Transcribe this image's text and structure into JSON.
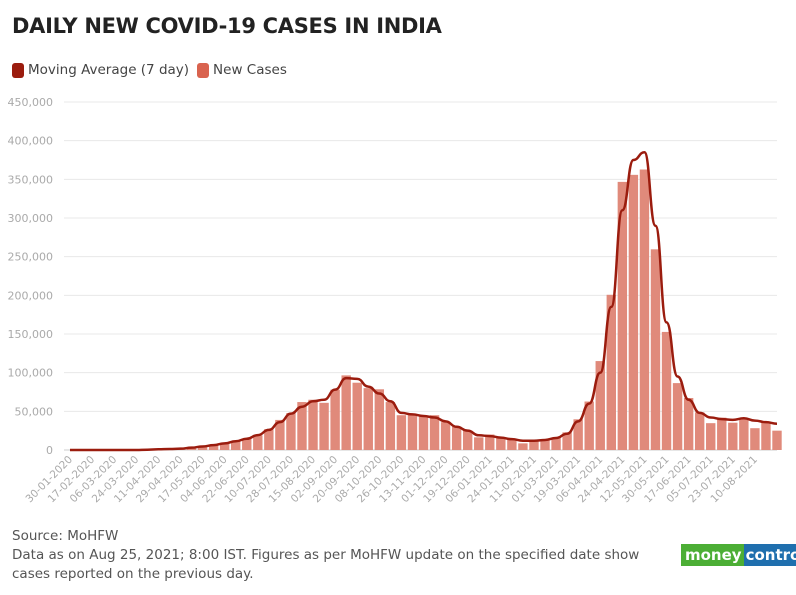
{
  "title": "DAILY NEW COVID-19 CASES IN INDIA",
  "legend": [
    {
      "label": "Moving Average (7 day)",
      "color": "#9b1c0e"
    },
    {
      "label": "New Cases",
      "color": "#d9634f"
    }
  ],
  "footer": {
    "source": "Source: MoHFW",
    "note": "Data as on Aug 25, 2021; 8:00 IST. Figures as per MoHFW update on the specified date show cases reported on the previous day."
  },
  "logo": {
    "part1": "money",
    "part2": "control"
  },
  "chart_data": {
    "type": "bar",
    "title": "DAILY NEW COVID-19 CASES IN INDIA",
    "xlabel": "",
    "ylabel": "",
    "ylim": [
      0,
      450000
    ],
    "yticks": [
      "0",
      "50,000",
      "100,000",
      "150,000",
      "200,000",
      "250,000",
      "300,000",
      "350,000",
      "400,000",
      "450,000"
    ],
    "grid": true,
    "legend_placement": "top-left",
    "xticks": [
      "30-01-2020",
      "17-02-2020",
      "06-03-2020",
      "24-03-2020",
      "11-04-2020",
      "29-04-2020",
      "17-05-2020",
      "04-06-2020",
      "22-06-2020",
      "10-07-2020",
      "28-07-2020",
      "15-08-2020",
      "02-09-2020",
      "20-09-2020",
      "08-10-2020",
      "26-10-2020",
      "13-11-2020",
      "01-12-2020",
      "19-12-2020",
      "06-01-2021",
      "24-01-2021",
      "11-02-2021",
      "01-03-2021",
      "19-03-2021",
      "06-04-2021",
      "24-04-2021",
      "12-05-2021",
      "30-05-2021",
      "17-06-2021",
      "05-07-2021",
      "23-07-2021",
      "10-08-2021"
    ],
    "dates": [
      "30-01-2020",
      "08-02-2020",
      "17-02-2020",
      "26-02-2020",
      "06-03-2020",
      "15-03-2020",
      "24-03-2020",
      "02-04-2020",
      "11-04-2020",
      "20-04-2020",
      "29-04-2020",
      "08-05-2020",
      "17-05-2020",
      "26-05-2020",
      "04-06-2020",
      "13-06-2020",
      "22-06-2020",
      "01-07-2020",
      "10-07-2020",
      "19-07-2020",
      "28-07-2020",
      "06-08-2020",
      "15-08-2020",
      "24-08-2020",
      "02-09-2020",
      "11-09-2020",
      "20-09-2020",
      "29-09-2020",
      "08-10-2020",
      "17-10-2020",
      "26-10-2020",
      "04-11-2020",
      "13-11-2020",
      "22-11-2020",
      "01-12-2020",
      "10-12-2020",
      "19-12-2020",
      "28-12-2020",
      "06-01-2021",
      "15-01-2021",
      "24-01-2021",
      "02-02-2021",
      "11-02-2021",
      "20-02-2021",
      "01-03-2021",
      "10-03-2021",
      "19-03-2021",
      "28-03-2021",
      "06-04-2021",
      "15-04-2021",
      "24-04-2021",
      "03-05-2021",
      "12-05-2021",
      "21-05-2021",
      "30-05-2021",
      "08-06-2021",
      "17-06-2021",
      "26-06-2021",
      "05-07-2021",
      "14-07-2021",
      "23-07-2021",
      "01-08-2021",
      "10-08-2021",
      "19-08-2021",
      "24-08-2021"
    ],
    "series": [
      {
        "name": "New Cases",
        "type": "bar",
        "values": [
          0,
          0,
          0,
          0,
          10,
          20,
          100,
          500,
          1000,
          1500,
          1800,
          3300,
          5000,
          6500,
          9300,
          11500,
          14800,
          19000,
          27000,
          38900,
          47700,
          62000,
          65000,
          61000,
          78000,
          96500,
          87000,
          80000,
          78500,
          62000,
          45000,
          46000,
          44000,
          45000,
          36000,
          30000,
          25000,
          16400,
          20000,
          15500,
          14000,
          8600,
          12900,
          13900,
          15500,
          22800,
          39700,
          62700,
          115000,
          200700,
          346700,
          355800,
          362700,
          259500,
          152700,
          86500,
          67200,
          48700,
          34700,
          41800,
          35300,
          40100,
          28200,
          36400,
          25000
        ]
      },
      {
        "name": "Moving Average (7 day)",
        "type": "line",
        "values": [
          0,
          0,
          0,
          0,
          5,
          15,
          80,
          400,
          900,
          1300,
          1700,
          3000,
          4600,
          6300,
          8600,
          11300,
          14500,
          19300,
          26000,
          36000,
          47000,
          56000,
          63000,
          65000,
          78000,
          93000,
          92000,
          82000,
          73000,
          63000,
          48000,
          46000,
          44000,
          42000,
          37000,
          30000,
          25000,
          19000,
          18000,
          16000,
          14000,
          12000,
          12000,
          13000,
          15500,
          21000,
          37000,
          60000,
          100000,
          185000,
          310000,
          375000,
          385000,
          290000,
          165000,
          95000,
          65000,
          48000,
          42000,
          40000,
          39000,
          41000,
          38000,
          36000,
          34000
        ]
      }
    ]
  }
}
